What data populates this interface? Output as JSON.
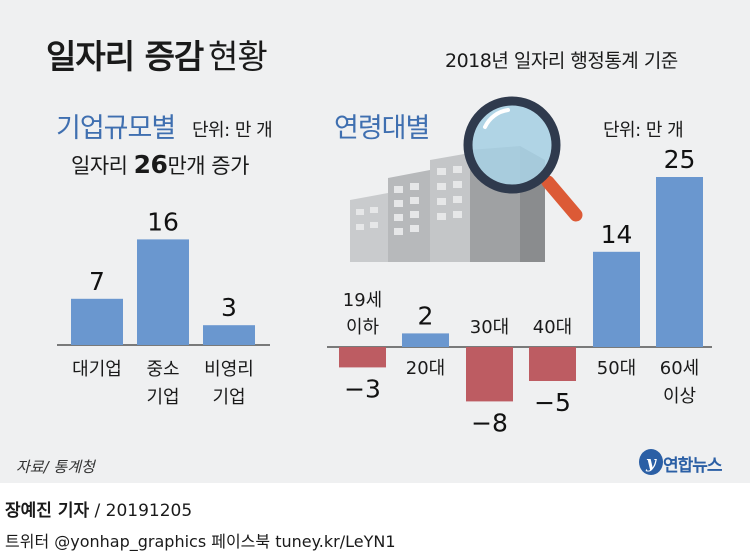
{
  "header": {
    "title_bold": "일자리 증감",
    "title_light": "현황",
    "basis": "2018년 일자리 행정통계 기준"
  },
  "section_company_size": {
    "title": "기업규모별",
    "unit": "단위: 만 개",
    "summary_prefix": "일자리 ",
    "summary_number": "26",
    "summary_suffix": "만개 증가"
  },
  "section_age": {
    "title": "연령대별",
    "unit": "단위: 만 개"
  },
  "colors": {
    "positive_bar": "#6a97cf",
    "negative_bar": "#bd5c62",
    "accent_title": "#3f6fb0",
    "panel_bg": "#eff0f1"
  },
  "chart_data": [
    {
      "type": "bar",
      "title": "기업규모별",
      "categories": [
        [
          "대기업"
        ],
        [
          "중소",
          "기업"
        ],
        [
          "비영리",
          "기업"
        ]
      ],
      "values": [
        7,
        16,
        3
      ]
    },
    {
      "type": "bar",
      "title": "연령대별",
      "categories": [
        [
          "19세",
          "이하"
        ],
        [
          "20대"
        ],
        [
          "30대"
        ],
        [
          "40대"
        ],
        [
          "50대"
        ],
        [
          "60세",
          "이상"
        ]
      ],
      "values": [
        -3,
        2,
        -8,
        -5,
        14,
        25
      ]
    }
  ],
  "source": "자료/ 통계청",
  "logo_text": "연합뉴스",
  "byline": {
    "reporter": "장예진 기자",
    "date": " / 20191205"
  },
  "footer": "트위터 @yonhap_graphics  페이스북 tuney.kr/LeYN1"
}
